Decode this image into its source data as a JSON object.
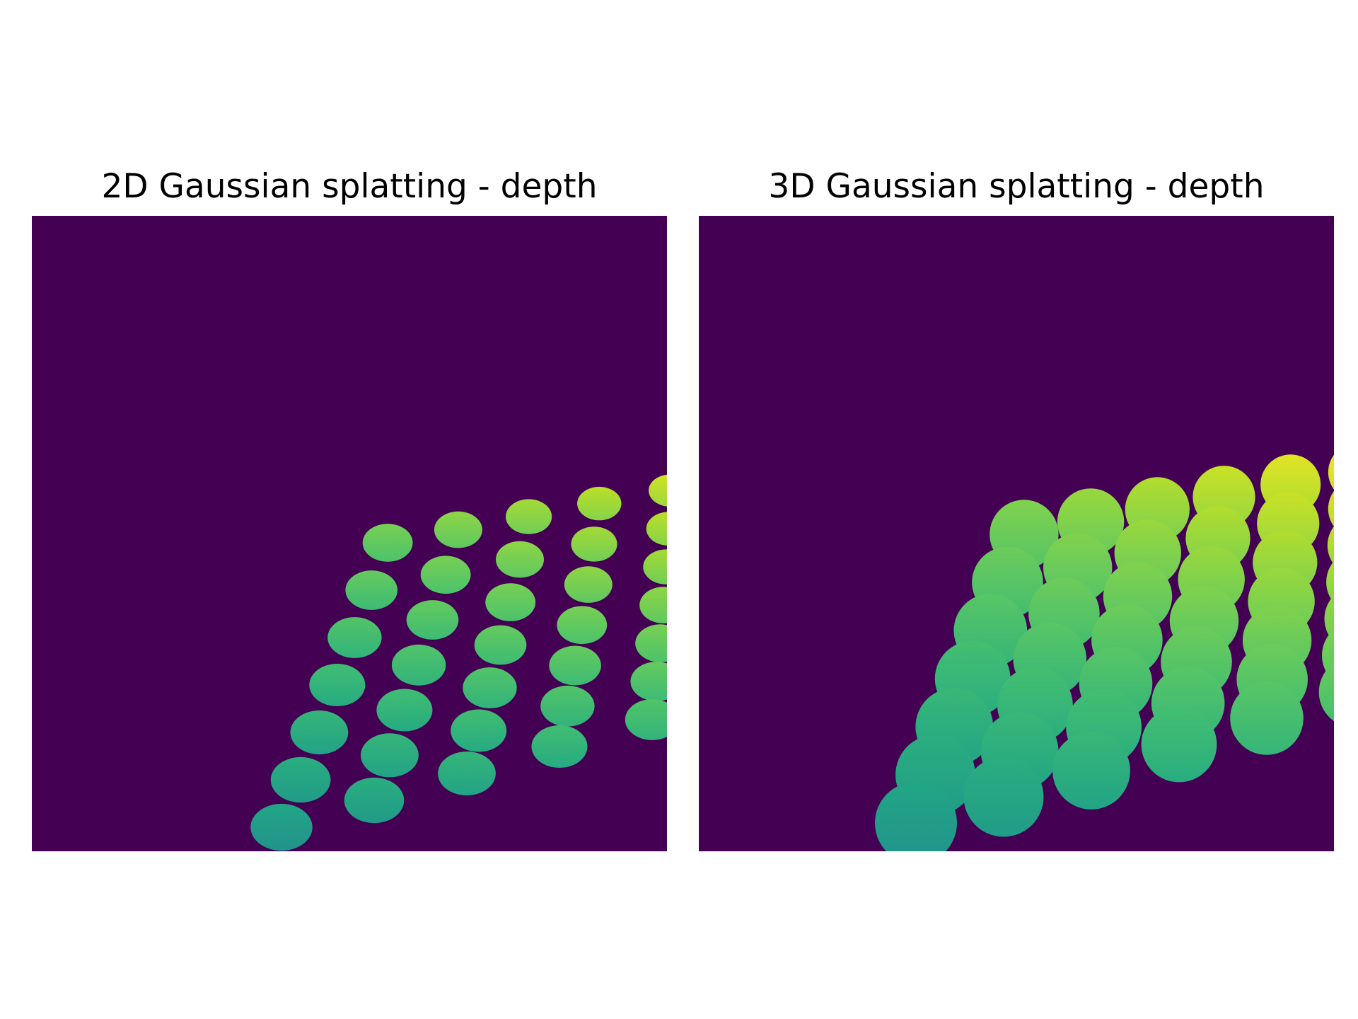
{
  "figure": {
    "panels": [
      {
        "id": "left",
        "title": "2D Gaussian splatting - depth",
        "kind": "2d"
      },
      {
        "id": "right",
        "title": "3D Gaussian splatting - depth",
        "kind": "3d"
      }
    ],
    "colors": {
      "background": "#440154",
      "colormap": "viridis"
    }
  }
}
